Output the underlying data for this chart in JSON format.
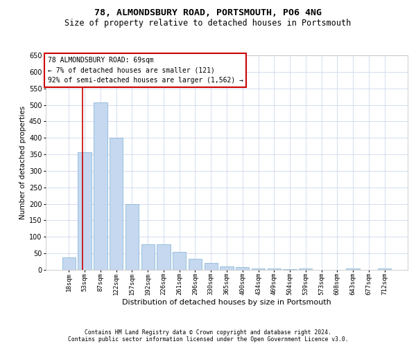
{
  "title1": "78, ALMONDSBURY ROAD, PORTSMOUTH, PO6 4NG",
  "title2": "Size of property relative to detached houses in Portsmouth",
  "xlabel": "Distribution of detached houses by size in Portsmouth",
  "ylabel": "Number of detached properties",
  "annotation_title": "78 ALMONDSBURY ROAD: 69sqm",
  "annotation_line2": "← 7% of detached houses are smaller (121)",
  "annotation_line3": "92% of semi-detached houses are larger (1,562) →",
  "footnote1": "Contains HM Land Registry data © Crown copyright and database right 2024.",
  "footnote2": "Contains public sector information licensed under the Open Government Licence v3.0.",
  "bar_labels": [
    "18sqm",
    "53sqm",
    "87sqm",
    "122sqm",
    "157sqm",
    "192sqm",
    "226sqm",
    "261sqm",
    "296sqm",
    "330sqm",
    "365sqm",
    "400sqm",
    "434sqm",
    "469sqm",
    "504sqm",
    "539sqm",
    "573sqm",
    "608sqm",
    "643sqm",
    "677sqm",
    "712sqm"
  ],
  "bar_values": [
    38,
    357,
    508,
    400,
    200,
    78,
    78,
    55,
    33,
    22,
    10,
    8,
    5,
    5,
    2,
    5,
    1,
    1,
    5,
    1,
    5
  ],
  "bar_color": "#c5d8ef",
  "bar_edge_color": "#7aafd4",
  "vline_x_index": 0.87,
  "vline_color": "#cc0000",
  "annotation_box_edgecolor": "#cc0000",
  "ylim_max": 650,
  "bg_color": "#ffffff",
  "grid_color": "#ccd8ec",
  "title1_fontsize": 9.5,
  "title2_fontsize": 8.5,
  "ylabel_fontsize": 7.5,
  "xlabel_fontsize": 8,
  "annot_fontsize": 7,
  "tick_fontsize": 6.5,
  "ytick_fontsize": 7,
  "footnote_fontsize": 5.8
}
